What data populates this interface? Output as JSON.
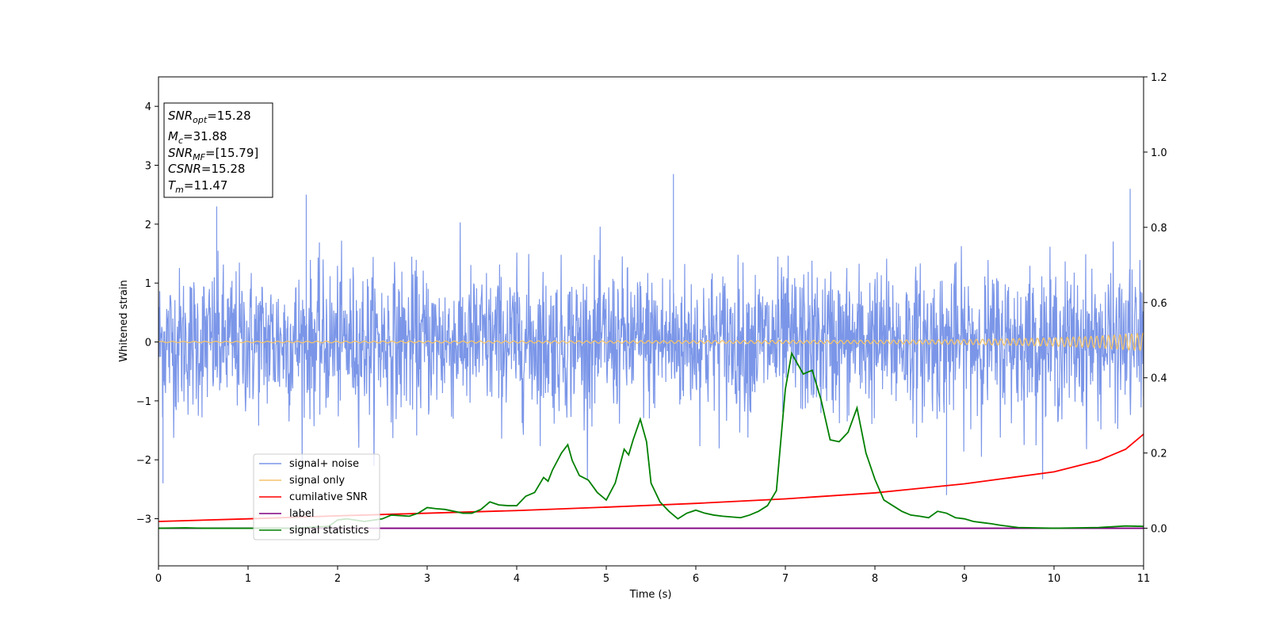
{
  "chart_data": {
    "type": "line",
    "xlabel": "Time (s)",
    "ylabel": "Whitened strain",
    "xlim": [
      0,
      11
    ],
    "ylim": [
      -3.8,
      4.5
    ],
    "y2lim": [
      -0.1,
      1.2
    ],
    "x_ticks": [
      "0",
      "1",
      "2",
      "3",
      "4",
      "5",
      "6",
      "7",
      "8",
      "9",
      "10",
      "11"
    ],
    "y_ticks": [
      "−3",
      "−2",
      "−1",
      "0",
      "1",
      "2",
      "3",
      "4"
    ],
    "y2_ticks": [
      "0.0",
      "0.2",
      "0.4",
      "0.6",
      "0.8",
      "1.0",
      "1.2"
    ],
    "legend_position": "lower-left",
    "info_box": {
      "snr_opt": {
        "base": "SNR",
        "sub": "opt",
        "value": "=15.28"
      },
      "mc": {
        "base": "M",
        "sub": "c",
        "value": "=31.88"
      },
      "snr_mf": {
        "base": "SNR",
        "sub": "MF",
        "value": "=[15.79]"
      },
      "csnr": {
        "base": "CSNR",
        "value": "=15.28"
      },
      "tm": {
        "base": "T",
        "sub": "m",
        "value": "=11.47"
      }
    },
    "series": [
      {
        "name": "signal+ noise",
        "color": "#7b96e8",
        "axis": "left",
        "note_random_envelope": true,
        "amplitude_approx": 1.5,
        "peaks": [
          [
            0.05,
            -2.4
          ],
          [
            0.65,
            2.3
          ],
          [
            1.65,
            2.5
          ],
          [
            5.75,
            2.85
          ],
          [
            8.8,
            -2.6
          ],
          [
            10.85,
            2.6
          ]
        ]
      },
      {
        "name": "signal only",
        "color": "#f5c46a",
        "axis": "left",
        "envelope": [
          [
            0,
            0.01
          ],
          [
            5,
            0.02
          ],
          [
            8,
            0.03
          ],
          [
            9,
            0.04
          ],
          [
            10,
            0.07
          ],
          [
            10.5,
            0.1
          ],
          [
            11,
            0.15
          ]
        ]
      },
      {
        "name": "cumilative SNR",
        "color": "#ff0000",
        "axis": "right",
        "x": [
          0,
          1,
          2,
          3,
          4,
          5,
          6,
          7,
          8,
          9,
          10,
          10.5,
          10.8,
          11
        ],
        "y": [
          0.018,
          0.025,
          0.033,
          0.04,
          0.047,
          0.056,
          0.066,
          0.078,
          0.094,
          0.118,
          0.15,
          0.18,
          0.21,
          0.25
        ]
      },
      {
        "name": "label",
        "color": "#800080",
        "axis": "right",
        "x": [
          0,
          11
        ],
        "y": [
          0.0,
          0.0
        ]
      },
      {
        "name": "signal statistics",
        "color": "#008000",
        "axis": "right",
        "x": [
          0,
          0.3,
          0.5,
          1.0,
          1.5,
          1.9,
          2.0,
          2.1,
          2.3,
          2.5,
          2.6,
          2.8,
          2.9,
          3.0,
          3.1,
          3.2,
          3.4,
          3.5,
          3.6,
          3.7,
          3.8,
          3.9,
          4.0,
          4.1,
          4.2,
          4.3,
          4.35,
          4.4,
          4.5,
          4.57,
          4.62,
          4.7,
          4.8,
          4.9,
          5.0,
          5.1,
          5.2,
          5.25,
          5.3,
          5.38,
          5.45,
          5.5,
          5.6,
          5.7,
          5.8,
          5.9,
          6.0,
          6.1,
          6.2,
          6.3,
          6.5,
          6.6,
          6.7,
          6.8,
          6.9,
          7.0,
          7.07,
          7.2,
          7.3,
          7.4,
          7.5,
          7.6,
          7.7,
          7.8,
          7.9,
          8.0,
          8.1,
          8.2,
          8.3,
          8.4,
          8.5,
          8.6,
          8.7,
          8.8,
          8.9,
          9.0,
          9.1,
          9.2,
          9.3,
          9.4,
          9.6,
          10.0,
          10.5,
          10.8,
          11.0
        ],
        "y": [
          0.0,
          0.001,
          0.0,
          0.0,
          0.0,
          0.005,
          0.022,
          0.025,
          0.018,
          0.025,
          0.035,
          0.032,
          0.04,
          0.055,
          0.052,
          0.05,
          0.04,
          0.04,
          0.05,
          0.07,
          0.062,
          0.06,
          0.06,
          0.085,
          0.095,
          0.135,
          0.125,
          0.155,
          0.2,
          0.222,
          0.18,
          0.14,
          0.128,
          0.095,
          0.075,
          0.12,
          0.21,
          0.195,
          0.235,
          0.29,
          0.23,
          0.12,
          0.07,
          0.045,
          0.025,
          0.04,
          0.048,
          0.04,
          0.035,
          0.032,
          0.028,
          0.035,
          0.045,
          0.06,
          0.1,
          0.37,
          0.465,
          0.41,
          0.42,
          0.34,
          0.235,
          0.23,
          0.255,
          0.32,
          0.2,
          0.13,
          0.075,
          0.06,
          0.045,
          0.035,
          0.032,
          0.028,
          0.045,
          0.04,
          0.028,
          0.025,
          0.018,
          0.015,
          0.012,
          0.008,
          0.002,
          0.0,
          0.002,
          0.006,
          0.005
        ]
      }
    ]
  }
}
